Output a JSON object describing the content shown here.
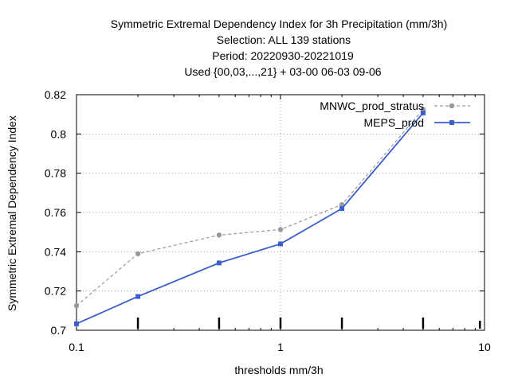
{
  "chart_data": {
    "type": "line",
    "title_lines": [
      "Symmetric Extremal Dependency Index  for 3h Precipitation (mm/3h)",
      "Selection: ALL    139 stations",
      "Period: 20220930-20221019",
      "Used {00,03,...,21} + 03-00 06-03 09-06"
    ],
    "xlabel": "thresholds mm/3h",
    "ylabel": "Symmetric Extremal Dependency Index",
    "x_scale": "log",
    "xlim": [
      0.1,
      10
    ],
    "ylim": [
      0.7,
      0.82
    ],
    "x_ticks": [
      {
        "value": 0.1,
        "label": "0.1"
      },
      {
        "value": 1,
        "label": "1"
      },
      {
        "value": 10,
        "label": "10"
      }
    ],
    "y_ticks": [
      {
        "value": 0.7,
        "label": "0.7"
      },
      {
        "value": 0.72,
        "label": "0.72"
      },
      {
        "value": 0.74,
        "label": "0.74"
      },
      {
        "value": 0.76,
        "label": "0.76"
      },
      {
        "value": 0.78,
        "label": "0.78"
      },
      {
        "value": 0.8,
        "label": "0.8"
      },
      {
        "value": 0.82,
        "label": "0.82"
      }
    ],
    "threshold_marks": [
      0.2,
      0.5,
      1,
      2,
      5
    ],
    "grid": true,
    "legend_position": "top-right",
    "series": [
      {
        "name": "MNWC_prod_stratus",
        "color": "#999999",
        "dash": true,
        "x": [
          0.1,
          0.2,
          0.5,
          1,
          2,
          5
        ],
        "y": [
          0.7125,
          0.739,
          0.7485,
          0.7513,
          0.764,
          0.8125
        ]
      },
      {
        "name": "MEPS_prod",
        "color": "#3a5fcd",
        "dash": false,
        "x": [
          0.1,
          0.2,
          0.5,
          1,
          2,
          5
        ],
        "y": [
          0.7033,
          0.7172,
          0.7343,
          0.744,
          0.762,
          0.8107
        ]
      }
    ]
  }
}
